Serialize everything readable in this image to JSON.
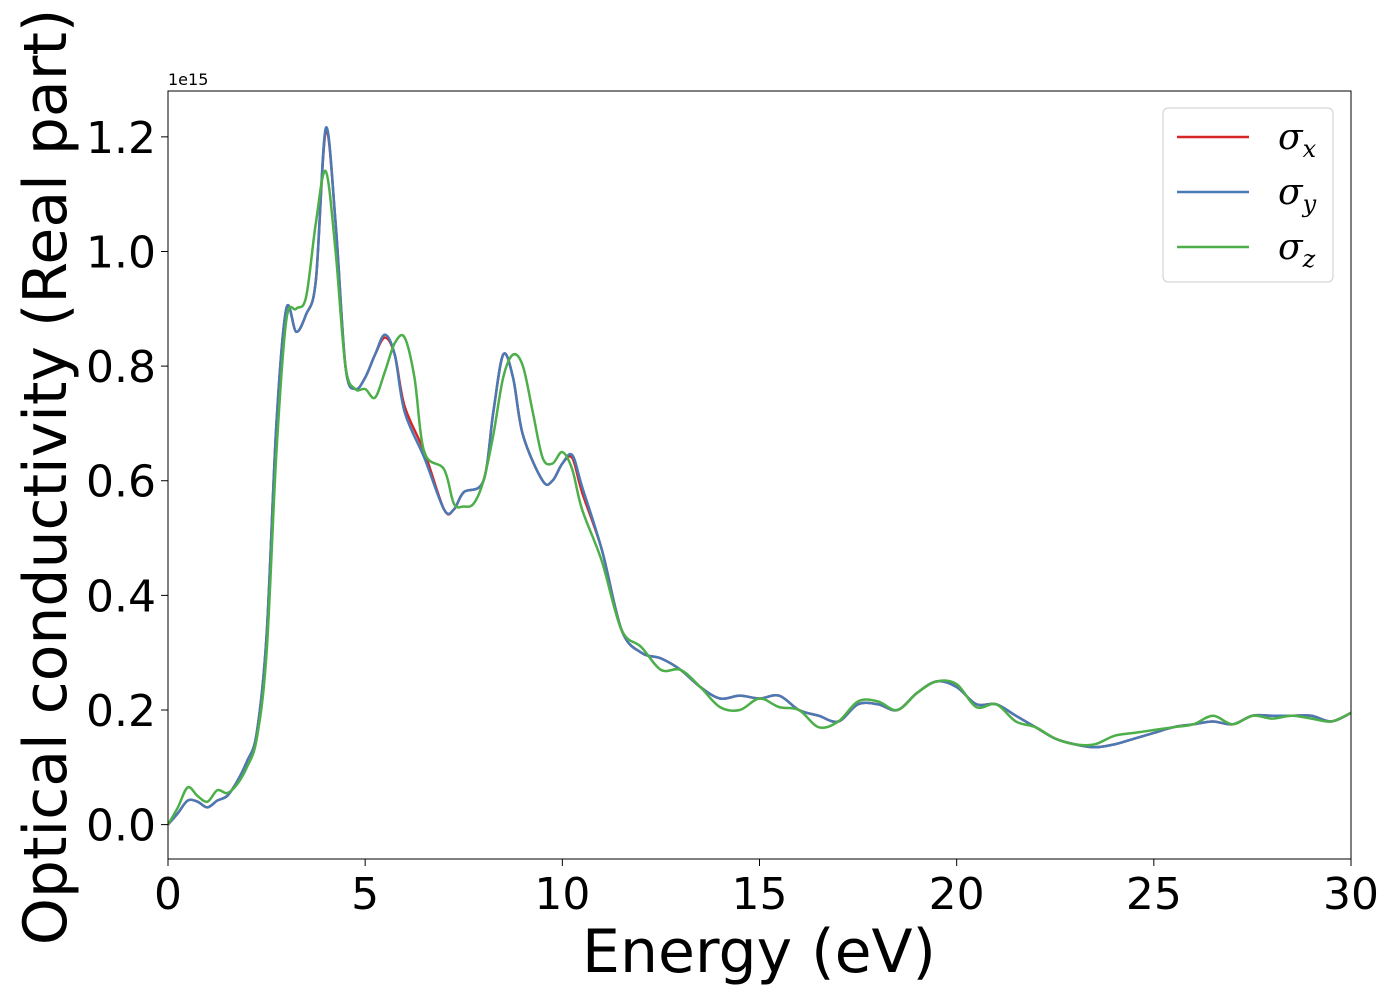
{
  "chart_data": {
    "type": "line",
    "title": "",
    "xlabel": "Energy (eV)",
    "ylabel": "Optical conductivity (Real part)",
    "y_offset_text": "1e15",
    "xlim": [
      0,
      30
    ],
    "ylim": [
      -0.06,
      1.28
    ],
    "y_scale_multiplier": 1000000000000000.0,
    "xticks": [
      0,
      5,
      10,
      15,
      20,
      25,
      30
    ],
    "xtick_labels": [
      "0",
      "5",
      "10",
      "15",
      "20",
      "25",
      "30"
    ],
    "yticks": [
      0.0,
      0.2,
      0.4,
      0.6,
      0.8,
      1.0,
      1.2
    ],
    "ytick_labels": [
      "0.0",
      "0.2",
      "0.4",
      "0.6",
      "0.8",
      "1.0",
      "1.2"
    ],
    "grid": false,
    "legend_position": "top-right",
    "series": [
      {
        "name": "σ",
        "sub": "x",
        "color": "#d62728",
        "points": [
          [
            0,
            0
          ],
          [
            0.25,
            0.02
          ],
          [
            0.5,
            0.042
          ],
          [
            0.75,
            0.04
          ],
          [
            1,
            0.03
          ],
          [
            1.25,
            0.042
          ],
          [
            1.5,
            0.05
          ],
          [
            1.75,
            0.075
          ],
          [
            2,
            0.11
          ],
          [
            2.25,
            0.16
          ],
          [
            2.5,
            0.33
          ],
          [
            2.75,
            0.7
          ],
          [
            3,
            0.9
          ],
          [
            3.25,
            0.86
          ],
          [
            3.5,
            0.89
          ],
          [
            3.75,
            0.95
          ],
          [
            4,
            1.21
          ],
          [
            4.25,
            1.05
          ],
          [
            4.5,
            0.8
          ],
          [
            4.75,
            0.76
          ],
          [
            5,
            0.78
          ],
          [
            5.25,
            0.82
          ],
          [
            5.5,
            0.85
          ],
          [
            5.75,
            0.82
          ],
          [
            6,
            0.73
          ],
          [
            6.5,
            0.65
          ],
          [
            7,
            0.55
          ],
          [
            7.25,
            0.55
          ],
          [
            7.5,
            0.58
          ],
          [
            8,
            0.6
          ],
          [
            8.25,
            0.72
          ],
          [
            8.5,
            0.82
          ],
          [
            8.75,
            0.78
          ],
          [
            9,
            0.68
          ],
          [
            9.5,
            0.6
          ],
          [
            9.75,
            0.6
          ],
          [
            10,
            0.63
          ],
          [
            10.25,
            0.64
          ],
          [
            10.5,
            0.58
          ],
          [
            11,
            0.48
          ],
          [
            11.5,
            0.34
          ],
          [
            12,
            0.3
          ],
          [
            12.5,
            0.29
          ],
          [
            13,
            0.27
          ],
          [
            13.5,
            0.24
          ],
          [
            14,
            0.22
          ],
          [
            14.5,
            0.225
          ],
          [
            15,
            0.22
          ],
          [
            15.5,
            0.225
          ],
          [
            16,
            0.2
          ],
          [
            16.5,
            0.19
          ],
          [
            17,
            0.18
          ],
          [
            17.5,
            0.21
          ],
          [
            18,
            0.21
          ],
          [
            18.5,
            0.2
          ],
          [
            19,
            0.23
          ],
          [
            19.5,
            0.25
          ],
          [
            20,
            0.24
          ],
          [
            20.5,
            0.21
          ],
          [
            21,
            0.21
          ],
          [
            21.5,
            0.19
          ],
          [
            22,
            0.17
          ],
          [
            22.5,
            0.15
          ],
          [
            23,
            0.14
          ],
          [
            23.5,
            0.135
          ],
          [
            24,
            0.14
          ],
          [
            24.5,
            0.15
          ],
          [
            25,
            0.16
          ],
          [
            25.5,
            0.17
          ],
          [
            26,
            0.175
          ],
          [
            26.5,
            0.18
          ],
          [
            27,
            0.175
          ],
          [
            27.5,
            0.19
          ],
          [
            28,
            0.19
          ],
          [
            28.5,
            0.19
          ],
          [
            29,
            0.19
          ],
          [
            29.5,
            0.18
          ],
          [
            30,
            0.195
          ]
        ]
      },
      {
        "name": "σ",
        "sub": "y",
        "color": "#4a7ab5",
        "points": [
          [
            0,
            0
          ],
          [
            0.25,
            0.02
          ],
          [
            0.5,
            0.042
          ],
          [
            0.75,
            0.04
          ],
          [
            1,
            0.03
          ],
          [
            1.25,
            0.042
          ],
          [
            1.5,
            0.05
          ],
          [
            1.75,
            0.075
          ],
          [
            2,
            0.11
          ],
          [
            2.25,
            0.16
          ],
          [
            2.5,
            0.33
          ],
          [
            2.75,
            0.7
          ],
          [
            3,
            0.9
          ],
          [
            3.25,
            0.86
          ],
          [
            3.5,
            0.89
          ],
          [
            3.75,
            0.95
          ],
          [
            4,
            1.215
          ],
          [
            4.25,
            1.05
          ],
          [
            4.5,
            0.8
          ],
          [
            4.75,
            0.76
          ],
          [
            5,
            0.78
          ],
          [
            5.25,
            0.82
          ],
          [
            5.5,
            0.855
          ],
          [
            5.75,
            0.82
          ],
          [
            6,
            0.72
          ],
          [
            6.5,
            0.64
          ],
          [
            7,
            0.55
          ],
          [
            7.25,
            0.55
          ],
          [
            7.5,
            0.58
          ],
          [
            8,
            0.6
          ],
          [
            8.25,
            0.72
          ],
          [
            8.5,
            0.82
          ],
          [
            8.75,
            0.78
          ],
          [
            9,
            0.68
          ],
          [
            9.5,
            0.6
          ],
          [
            9.75,
            0.6
          ],
          [
            10,
            0.63
          ],
          [
            10.25,
            0.645
          ],
          [
            10.5,
            0.59
          ],
          [
            11,
            0.48
          ],
          [
            11.5,
            0.34
          ],
          [
            12,
            0.3
          ],
          [
            12.5,
            0.29
          ],
          [
            13,
            0.27
          ],
          [
            13.5,
            0.24
          ],
          [
            14,
            0.22
          ],
          [
            14.5,
            0.225
          ],
          [
            15,
            0.22
          ],
          [
            15.5,
            0.225
          ],
          [
            16,
            0.2
          ],
          [
            16.5,
            0.19
          ],
          [
            17,
            0.18
          ],
          [
            17.5,
            0.21
          ],
          [
            18,
            0.21
          ],
          [
            18.5,
            0.2
          ],
          [
            19,
            0.23
          ],
          [
            19.5,
            0.25
          ],
          [
            20,
            0.24
          ],
          [
            20.5,
            0.21
          ],
          [
            21,
            0.21
          ],
          [
            21.5,
            0.19
          ],
          [
            22,
            0.17
          ],
          [
            22.5,
            0.15
          ],
          [
            23,
            0.14
          ],
          [
            23.5,
            0.135
          ],
          [
            24,
            0.14
          ],
          [
            24.5,
            0.15
          ],
          [
            25,
            0.16
          ],
          [
            25.5,
            0.17
          ],
          [
            26,
            0.175
          ],
          [
            26.5,
            0.18
          ],
          [
            27,
            0.175
          ],
          [
            27.5,
            0.19
          ],
          [
            28,
            0.19
          ],
          [
            28.5,
            0.19
          ],
          [
            29,
            0.19
          ],
          [
            29.5,
            0.18
          ],
          [
            30,
            0.195
          ]
        ]
      },
      {
        "name": "σ",
        "sub": "z",
        "color": "#4daf4a",
        "points": [
          [
            0,
            0
          ],
          [
            0.25,
            0.03
          ],
          [
            0.5,
            0.065
          ],
          [
            0.75,
            0.05
          ],
          [
            1,
            0.04
          ],
          [
            1.25,
            0.06
          ],
          [
            1.5,
            0.055
          ],
          [
            1.75,
            0.07
          ],
          [
            2,
            0.1
          ],
          [
            2.25,
            0.15
          ],
          [
            2.5,
            0.3
          ],
          [
            2.75,
            0.65
          ],
          [
            3,
            0.88
          ],
          [
            3.25,
            0.9
          ],
          [
            3.5,
            0.92
          ],
          [
            3.75,
            1.05
          ],
          [
            4,
            1.14
          ],
          [
            4.25,
            1.0
          ],
          [
            4.5,
            0.8
          ],
          [
            4.75,
            0.76
          ],
          [
            5,
            0.76
          ],
          [
            5.25,
            0.745
          ],
          [
            5.5,
            0.79
          ],
          [
            5.75,
            0.84
          ],
          [
            6,
            0.85
          ],
          [
            6.25,
            0.78
          ],
          [
            6.5,
            0.65
          ],
          [
            7,
            0.62
          ],
          [
            7.25,
            0.56
          ],
          [
            7.5,
            0.555
          ],
          [
            7.75,
            0.56
          ],
          [
            8,
            0.6
          ],
          [
            8.25,
            0.68
          ],
          [
            8.5,
            0.78
          ],
          [
            8.75,
            0.82
          ],
          [
            9,
            0.8
          ],
          [
            9.25,
            0.72
          ],
          [
            9.5,
            0.64
          ],
          [
            9.75,
            0.63
          ],
          [
            10,
            0.65
          ],
          [
            10.25,
            0.62
          ],
          [
            10.5,
            0.55
          ],
          [
            11,
            0.46
          ],
          [
            11.5,
            0.34
          ],
          [
            12,
            0.31
          ],
          [
            12.5,
            0.27
          ],
          [
            13,
            0.27
          ],
          [
            13.5,
            0.24
          ],
          [
            14,
            0.205
          ],
          [
            14.5,
            0.2
          ],
          [
            15,
            0.22
          ],
          [
            15.5,
            0.205
          ],
          [
            16,
            0.2
          ],
          [
            16.5,
            0.17
          ],
          [
            17,
            0.18
          ],
          [
            17.5,
            0.215
          ],
          [
            18,
            0.215
          ],
          [
            18.5,
            0.2
          ],
          [
            19,
            0.23
          ],
          [
            19.5,
            0.25
          ],
          [
            20,
            0.245
          ],
          [
            20.5,
            0.205
          ],
          [
            21,
            0.21
          ],
          [
            21.5,
            0.18
          ],
          [
            22,
            0.17
          ],
          [
            22.5,
            0.15
          ],
          [
            23,
            0.14
          ],
          [
            23.5,
            0.14
          ],
          [
            24,
            0.155
          ],
          [
            24.5,
            0.16
          ],
          [
            25,
            0.165
          ],
          [
            25.5,
            0.17
          ],
          [
            26,
            0.175
          ],
          [
            26.5,
            0.19
          ],
          [
            27,
            0.175
          ],
          [
            27.5,
            0.19
          ],
          [
            28,
            0.185
          ],
          [
            28.5,
            0.19
          ],
          [
            29,
            0.185
          ],
          [
            29.5,
            0.18
          ],
          [
            30,
            0.195
          ]
        ]
      }
    ]
  }
}
